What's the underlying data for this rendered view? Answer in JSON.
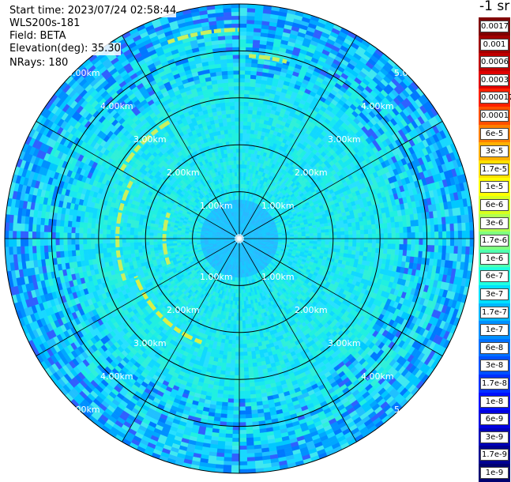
{
  "header": {
    "start_time": "Start time: 2023/07/24 02:58:44",
    "instrument": "WLS200s-181",
    "field": "Field: BETA",
    "elevation": "Elevation(deg): 35.30",
    "nrays": "NRays: 180"
  },
  "chart_data": {
    "type": "heatmap",
    "projection": "polar-ppi",
    "nrays": 180,
    "range_max_km": 5.0,
    "range_rings_km": [
      1.0,
      2.0,
      3.0,
      4.0,
      5.0
    ],
    "ring_labels": [
      "1.00km",
      "2.00km",
      "3.00km",
      "4.00km",
      "5.00km"
    ],
    "spokes_deg": [
      0,
      30,
      60,
      90,
      120,
      150,
      180,
      210,
      240,
      270,
      300,
      330
    ],
    "colorbar": {
      "unit": "-1 sr",
      "scale": "log",
      "labels": [
        "0.0017",
        "0.001",
        "0.0006",
        "0.0003",
        "0.00017",
        "0.0001",
        "6e-5",
        "3e-5",
        "1.7e-5",
        "1e-5",
        "6e-6",
        "3e-6",
        "1.7e-6",
        "1e-6",
        "6e-7",
        "3e-7",
        "1.7e-7",
        "1e-7",
        "6e-8",
        "3e-8",
        "1.7e-8",
        "1e-8",
        "6e-9",
        "3e-9",
        "1.7e-9",
        "1e-9"
      ],
      "colors": [
        "#800000",
        "#a00000",
        "#c00000",
        "#e00000",
        "#ff2000",
        "#ff5000",
        "#ff8000",
        "#ffb000",
        "#ffe000",
        "#ffff00",
        "#d8ff20",
        "#b0ff50",
        "#80ff80",
        "#50ffb0",
        "#20ffe0",
        "#00e0ff",
        "#00b8ff",
        "#0090ff",
        "#0070ff",
        "#0050ff",
        "#0030ff",
        "#0010ff",
        "#0000e0",
        "#0000b8",
        "#000090",
        "#000070"
      ]
    },
    "structure": {
      "inner_core_radius_km": 0.8,
      "arc_ring_radius_km": [
        2.3,
        3.8
      ],
      "arc_value": "1e-5"
    }
  }
}
